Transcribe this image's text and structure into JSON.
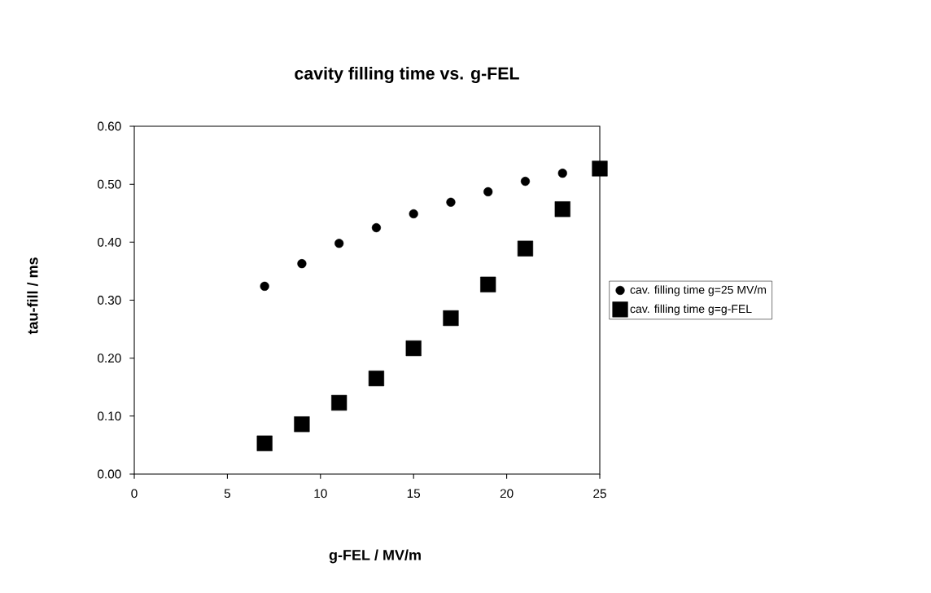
{
  "chart_data": {
    "type": "scatter",
    "title": "cavity filling time vs. g-FEL",
    "xlabel": "g-FEL / MV/m",
    "ylabel": "tau-fill / ms",
    "x": [
      7,
      9,
      11,
      13,
      15,
      17,
      19,
      21,
      23,
      25
    ],
    "series": [
      {
        "name": "cav. filling time g=25 MV/m",
        "color": "#000000",
        "marker": "circle",
        "values": [
          0.324,
          0.363,
          0.398,
          0.425,
          0.449,
          0.469,
          0.487,
          0.505,
          0.519,
          null
        ]
      },
      {
        "name": "cav. filling time g=g-FEL",
        "color": "#000000",
        "marker": "square",
        "values": [
          0.053,
          0.086,
          0.123,
          0.165,
          0.217,
          0.269,
          0.327,
          0.389,
          0.457,
          0.527
        ]
      }
    ],
    "xlim": [
      0,
      25
    ],
    "xticks": [
      0,
      5,
      10,
      15,
      20,
      25
    ],
    "ylim": [
      0,
      0.6
    ],
    "yticks": [
      {
        "value": 0,
        "label": "0.00"
      },
      {
        "value": 0.1,
        "label": "0.10"
      },
      {
        "value": 0.2,
        "label": "0.20"
      },
      {
        "value": 0.3,
        "label": "0.30"
      },
      {
        "value": 0.4,
        "label": "0.40"
      },
      {
        "value": 0.5,
        "label": "0.50"
      },
      {
        "value": 0.6,
        "label": "0.60"
      }
    ],
    "grid": false,
    "legend": "right"
  }
}
